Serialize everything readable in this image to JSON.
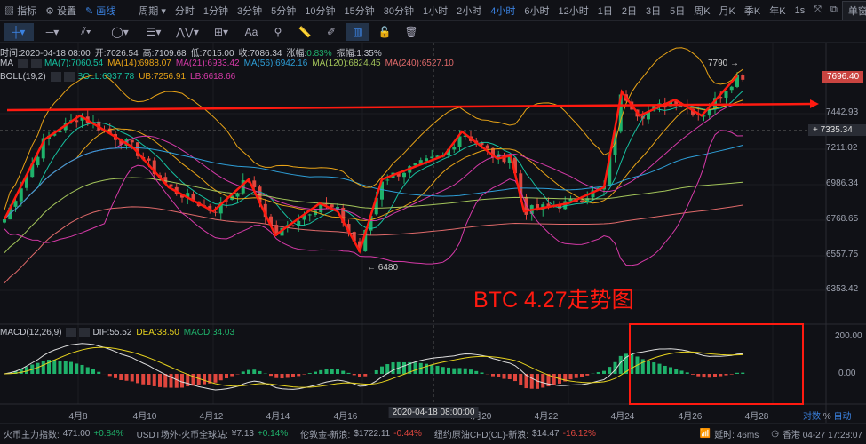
{
  "toolbar": {
    "indicators": "指标",
    "settings": "设置",
    "draw": "画线",
    "period": "周期",
    "intervals": [
      "分时",
      "1分钟",
      "3分钟",
      "5分钟",
      "10分钟",
      "15分钟",
      "30分钟",
      "1小时",
      "2小时",
      "4小时",
      "6小时",
      "12小时",
      "1日",
      "2日",
      "3日",
      "5日",
      "周K",
      "月K",
      "季K",
      "年K"
    ],
    "active_interval": "4小时",
    "refresh": "1s",
    "window_mode": "单窗口"
  },
  "drawing_tools": [
    "crosshair-icon",
    "horizontal-line-icon",
    "parallel-lines-icon",
    "ellipse-icon",
    "fib-icon",
    "wave-icon",
    "measure-box-icon",
    "text-icon",
    "magnet-icon",
    "ruler-icon",
    "pen-icon",
    "candle-mode-icon",
    "lock-icon",
    "trash-icon"
  ],
  "ohlc": {
    "time": "时间:2020-04-18 08:00",
    "open": "开:7026.54",
    "high": "高:7109.68",
    "low": "低:7015.00",
    "close": "收:7086.34",
    "change_label": "涨幅:",
    "change": "0.83%",
    "amplitude": "振幅:1.35%"
  },
  "ma": {
    "label": "MA",
    "items": [
      {
        "t": "MA(7):7060.54",
        "c": "#16c1a0"
      },
      {
        "t": "MA(14):6988.07",
        "c": "#e8a317"
      },
      {
        "t": "MA(21):6933.42",
        "c": "#d63aa8"
      },
      {
        "t": "MA(56):6942.16",
        "c": "#2e9fd8"
      },
      {
        "t": "MA(120):6824.45",
        "c": "#a3c45a"
      },
      {
        "t": "MA(240):6527.10",
        "c": "#e06a6a"
      }
    ]
  },
  "boll": {
    "label": "BOLL(19,2)",
    "items": [
      {
        "t": "BOLL:6937.78",
        "c": "#16c1a0"
      },
      {
        "t": "UB:7256.91",
        "c": "#e8a317"
      },
      {
        "t": "LB:6618.66",
        "c": "#d63aa8"
      }
    ]
  },
  "macd": {
    "label": "MACD(12,26,9)",
    "dif": "DIF:55.52",
    "dea": "DEA:38.50",
    "macd": "MACD:34.03"
  },
  "price_axis": [
    "7442.93",
    "7211.02",
    "6986.34",
    "6768.65",
    "6557.75",
    "6353.42"
  ],
  "last_price": "7696.40",
  "cursor_price": "7335.34",
  "macd_axis": [
    "200.00",
    "0.00"
  ],
  "annotations": {
    "high": "7790",
    "low": "6480",
    "title": "BTC 4.27走势图"
  },
  "x_axis": [
    "4月8",
    "4月10",
    "4月12",
    "4月14",
    "4月16",
    "4月20",
    "4月22",
    "4月24",
    "4月26",
    "4月28"
  ],
  "cursor_time": "2020-04-18 08:00:00",
  "axis_modes": [
    "对数",
    "%",
    "自动"
  ],
  "status": [
    {
      "name": "火币主力指数:",
      "val": "471.00",
      "chg": "+0.84%",
      "up": true
    },
    {
      "name": "USDT场外-火币全球站:",
      "val": "¥7.13",
      "chg": "+0.14%",
      "up": true
    },
    {
      "name": "伦敦金-新浪:",
      "val": "$1722.11",
      "chg": "-0.44%",
      "up": false
    },
    {
      "name": "纽约原油CFD(CL)-新浪:",
      "val": "$14.47",
      "chg": "-16.12%",
      "up": false
    }
  ],
  "latency": "延时: 46ms",
  "clock": "香港 04-27 17:28:07",
  "colors": {
    "up": "#1fb26b",
    "down": "#e0463e",
    "accent": "#3b82e0",
    "annotation": "#ff1a10"
  }
}
